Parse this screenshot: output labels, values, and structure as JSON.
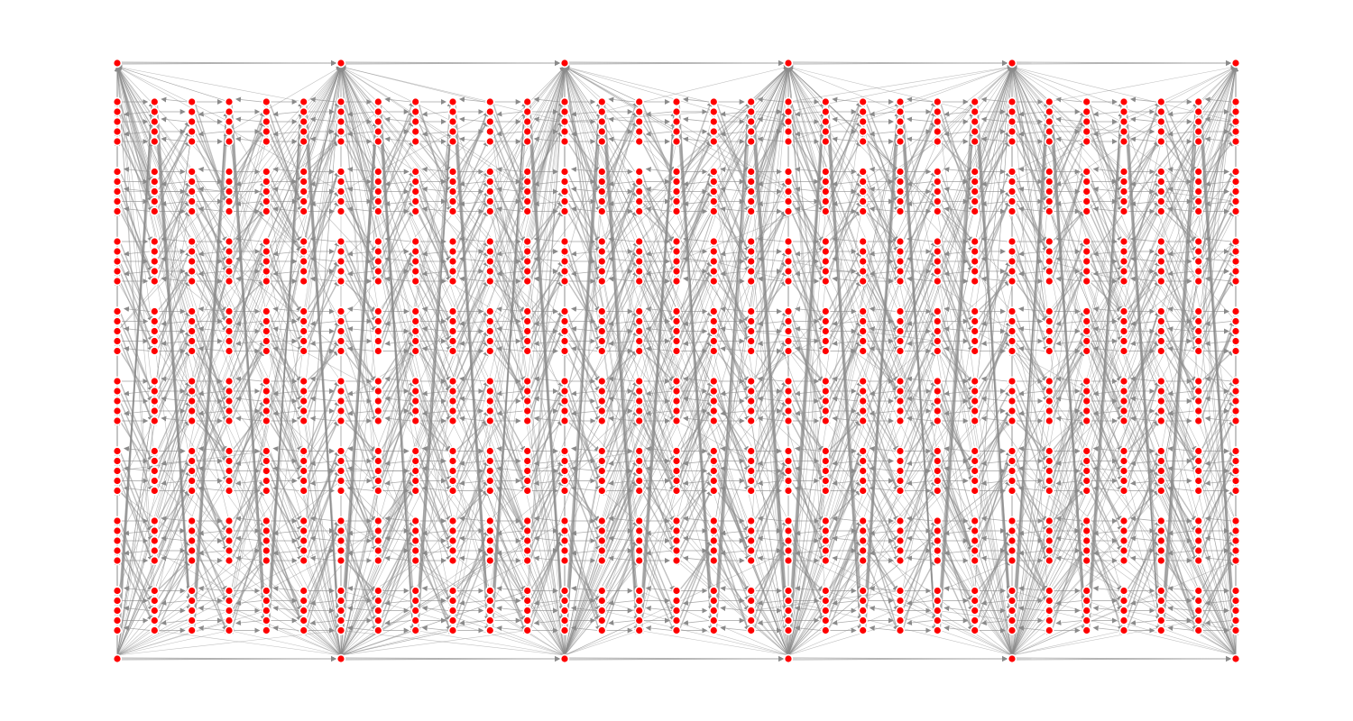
{
  "graph": {
    "node_color": "#ff0000",
    "node_outline_color": "#ffffff",
    "edge_color": "#8a8a8a",
    "background": "#ffffff",
    "directed": true,
    "columns": 31,
    "blocks_per_column": 8,
    "nodes_per_block": 5,
    "hub_nodes_per_row": 6,
    "hub_rows": [
      "top",
      "bottom"
    ],
    "labels_shown": false
  }
}
